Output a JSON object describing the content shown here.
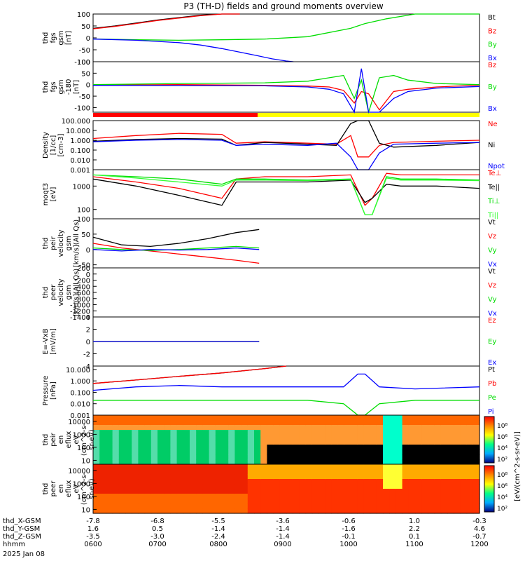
{
  "title": "P3 (TH-D) fields and ground moments overview",
  "colors": {
    "black": "#000000",
    "red": "#ff0000",
    "green": "#00dd00",
    "blue": "#0000ff",
    "yellow": "#ffff00",
    "bright_green": "#33ff33"
  },
  "chart_data": [
    {
      "type": "line",
      "ylabel": [
        "thd",
        "fgs",
        "gsm",
        "[nT]"
      ],
      "ylim": [
        -100,
        100
      ],
      "yticks": [
        "100",
        "50",
        "0",
        "-50",
        "-100"
      ],
      "legend": [
        {
          "name": "Bt",
          "color": "black"
        },
        {
          "name": "Bz",
          "color": "red"
        },
        {
          "name": "By",
          "color": "green"
        },
        {
          "name": "Bx",
          "color": "blue"
        }
      ],
      "series": [
        {
          "name": "Bt",
          "x": [
            0,
            30,
            60,
            90,
            120,
            150,
            180,
            205
          ],
          "y": [
            40,
            50,
            62,
            75,
            85,
            95,
            100,
            100
          ]
        },
        {
          "name": "Bz",
          "x": [
            0,
            30,
            60,
            90,
            120,
            150,
            180,
            205
          ],
          "y": [
            38,
            48,
            60,
            73,
            83,
            93,
            100,
            100
          ]
        },
        {
          "name": "By",
          "x": [
            0,
            60,
            120,
            180,
            240,
            300,
            360,
            380,
            410,
            450,
            490,
            530,
            540
          ],
          "y": [
            -5,
            -8,
            -10,
            -8,
            -5,
            5,
            40,
            60,
            80,
            100,
            100,
            100,
            100
          ]
        },
        {
          "name": "Bx",
          "x": [
            0,
            60,
            120,
            150,
            180,
            205,
            230,
            250,
            270,
            280
          ],
          "y": [
            -5,
            -10,
            -20,
            -30,
            -45,
            -60,
            -75,
            -88,
            -97,
            -100
          ]
        }
      ]
    },
    {
      "type": "line",
      "ylabel": [
        "thd",
        "fgs",
        "gsm",
        "-180",
        "[nT]"
      ],
      "ylim": [
        -120,
        100
      ],
      "yticks": [
        "100",
        "50",
        "0",
        "-50",
        "-100"
      ],
      "legend": [
        {
          "name": "Bz",
          "color": "red"
        },
        {
          "name": "By",
          "color": "green"
        },
        {
          "name": "Bx",
          "color": "blue"
        }
      ],
      "series": [
        {
          "name": "Bz",
          "x": [
            0,
            120,
            240,
            300,
            330,
            350,
            365,
            375,
            385,
            400,
            420,
            440,
            480,
            540
          ],
          "y": [
            -2,
            0,
            -3,
            -6,
            -10,
            -25,
            -80,
            -30,
            -40,
            -110,
            -30,
            -20,
            -10,
            -2
          ]
        },
        {
          "name": "By",
          "x": [
            0,
            120,
            240,
            300,
            330,
            350,
            365,
            375,
            385,
            400,
            420,
            440,
            480,
            540
          ],
          "y": [
            0,
            5,
            8,
            15,
            30,
            40,
            -60,
            20,
            -120,
            30,
            40,
            20,
            5,
            0
          ]
        },
        {
          "name": "Bx",
          "x": [
            0,
            120,
            240,
            300,
            330,
            350,
            365,
            375,
            385,
            400,
            420,
            440,
            480,
            540
          ],
          "y": [
            -3,
            -4,
            -5,
            -10,
            -20,
            -40,
            -120,
            70,
            -120,
            -120,
            -60,
            -30,
            -15,
            -8
          ]
        }
      ]
    },
    {
      "type": "line",
      "ylabel": [
        "Density",
        "[1/cc]",
        "[cm-3]"
      ],
      "ylog": true,
      "ylim": [
        0.001,
        100
      ],
      "yticks": [
        "100.000",
        "10.000",
        "1.000",
        "0.100",
        "0.010",
        "0.001"
      ],
      "legend": [
        {
          "name": "Ne",
          "color": "red"
        },
        {
          "name": "Ni",
          "color": "black"
        },
        {
          "name": "Npot",
          "color": "blue"
        }
      ],
      "series": [
        {
          "name": "Ne",
          "x": [
            0,
            60,
            120,
            180,
            200,
            240,
            300,
            340,
            360,
            370,
            385,
            400,
            420,
            480,
            540
          ],
          "y": [
            1.5,
            3,
            5,
            4,
            0.5,
            0.7,
            0.5,
            0.4,
            3,
            0.02,
            0.02,
            0.3,
            0.6,
            0.8,
            1
          ]
        },
        {
          "name": "Ni",
          "x": [
            0,
            60,
            120,
            180,
            200,
            240,
            300,
            340,
            360,
            370,
            385,
            400,
            420,
            480,
            540
          ],
          "y": [
            0.8,
            1.2,
            1.5,
            1.3,
            0.3,
            0.6,
            0.4,
            0.3,
            50,
            100,
            100,
            0.5,
            0.2,
            0.3,
            0.6
          ]
        },
        {
          "name": "Npot",
          "x": [
            0,
            60,
            120,
            180,
            200,
            240,
            300,
            340,
            360,
            370,
            385,
            400,
            420,
            480,
            540
          ],
          "y": [
            0.7,
            1,
            1.2,
            1,
            0.3,
            0.4,
            0.3,
            0.5,
            0.02,
            0.001,
            0.001,
            0.05,
            0.4,
            0.5,
            0.6
          ]
        }
      ]
    },
    {
      "type": "line",
      "ylabel": [
        "moqt3",
        "[eV]"
      ],
      "ylog": true,
      "ylim": [
        40,
        5000
      ],
      "yticks": [
        "1000",
        "100"
      ],
      "legend": [
        {
          "name": "Te⊥",
          "color": "red"
        },
        {
          "name": "Te||",
          "color": "black"
        },
        {
          "name": "Ti⊥",
          "color": "green"
        },
        {
          "name": "Ti||",
          "color": "bright_green"
        }
      ],
      "series": [
        {
          "name": "Te⊥",
          "x": [
            0,
            60,
            120,
            180,
            200,
            240,
            300,
            360,
            380,
            390,
            410,
            430,
            480,
            540
          ],
          "y": [
            2500,
            1500,
            800,
            300,
            2000,
            2500,
            2500,
            3000,
            150,
            300,
            3500,
            3000,
            3000,
            3000
          ]
        },
        {
          "name": "Te||",
          "x": [
            0,
            60,
            120,
            180,
            200,
            240,
            300,
            360,
            380,
            390,
            410,
            430,
            480,
            540
          ],
          "y": [
            2000,
            1000,
            400,
            150,
            1500,
            1500,
            1500,
            1800,
            200,
            300,
            1200,
            1000,
            1000,
            800
          ]
        },
        {
          "name": "Ti⊥",
          "x": [
            0,
            60,
            120,
            180,
            200,
            240,
            300,
            360,
            380,
            390,
            410,
            430,
            480,
            540
          ],
          "y": [
            3000,
            2500,
            2000,
            1200,
            2000,
            2000,
            1800,
            2000,
            60,
            60,
            2500,
            2000,
            2000,
            1800
          ]
        },
        {
          "name": "Ti||",
          "x": [
            0,
            60,
            120,
            180,
            200,
            240,
            300,
            360,
            380,
            390,
            410,
            430,
            480,
            540
          ],
          "y": [
            3000,
            2200,
            1500,
            1000,
            1800,
            1800,
            1700,
            1900,
            60,
            60,
            2200,
            1800,
            1800,
            1700
          ]
        }
      ]
    },
    {
      "type": "line",
      "ylabel": [
        "thd",
        "peir",
        "velocity",
        "gsm",
        "[km/s](All Qs)"
      ],
      "ylim": [
        -60,
        100
      ],
      "yticks": [
        "100",
        "50",
        "0",
        "-50"
      ],
      "legend": [
        {
          "name": "Vt",
          "color": "black"
        },
        {
          "name": "Vz",
          "color": "red"
        },
        {
          "name": "Vy",
          "color": "green"
        },
        {
          "name": "Vx",
          "color": "blue"
        }
      ],
      "series": [
        {
          "name": "Vt",
          "x": [
            0,
            40,
            80,
            120,
            160,
            200,
            232
          ],
          "y": [
            40,
            15,
            10,
            20,
            35,
            55,
            65
          ]
        },
        {
          "name": "Vz",
          "x": [
            0,
            40,
            80,
            120,
            160,
            200,
            232
          ],
          "y": [
            20,
            5,
            -5,
            -15,
            -25,
            -35,
            -45
          ]
        },
        {
          "name": "Vy",
          "x": [
            0,
            40,
            80,
            120,
            160,
            200,
            232
          ],
          "y": [
            5,
            0,
            -3,
            0,
            5,
            10,
            5
          ]
        },
        {
          "name": "Vx",
          "x": [
            0,
            40,
            80,
            120,
            160,
            200,
            232
          ],
          "y": [
            0,
            -5,
            0,
            -2,
            0,
            5,
            0
          ]
        }
      ]
    },
    {
      "type": "line",
      "ylabel": [
        "thd",
        "peer",
        "velocity",
        "gsm",
        "[km/s](All Qs)"
      ],
      "ylim": [
        -1400,
        200
      ],
      "yticks": [
        "200",
        "0",
        "-200",
        "-400",
        "-600",
        "-800",
        "-1000",
        "-1200",
        "-1400"
      ],
      "legend": [
        {
          "name": "Vt",
          "color": "black"
        },
        {
          "name": "Vz",
          "color": "red"
        },
        {
          "name": "Vy",
          "color": "green"
        },
        {
          "name": "Vx",
          "color": "blue"
        }
      ],
      "series": []
    },
    {
      "type": "line",
      "ylabel": [
        "E=-VxB",
        "[mV/m]"
      ],
      "ylim": [
        -4,
        4
      ],
      "yticks": [
        "4",
        "2",
        "0",
        "-2",
        "-4"
      ],
      "legend": [
        {
          "name": "Ez",
          "color": "red"
        },
        {
          "name": "Ey",
          "color": "green"
        },
        {
          "name": "Ex",
          "color": "blue"
        }
      ],
      "series": [
        {
          "name": "Ez",
          "x": [
            0,
            232
          ],
          "y": [
            0,
            0
          ]
        },
        {
          "name": "Ey",
          "x": [
            0,
            232
          ],
          "y": [
            0,
            0
          ]
        },
        {
          "name": "Ex",
          "x": [
            0,
            232
          ],
          "y": [
            0,
            0
          ]
        }
      ]
    },
    {
      "type": "line",
      "ylabel": [
        "Pressure",
        "[nPa]"
      ],
      "ylog": true,
      "ylim": [
        0.001,
        20
      ],
      "yticks": [
        "10.000",
        "1.000",
        "0.100",
        "0.010",
        "0.001"
      ],
      "legend": [
        {
          "name": "Pt",
          "color": "black"
        },
        {
          "name": "Pb",
          "color": "red"
        },
        {
          "name": "Pe",
          "color": "green"
        },
        {
          "name": "Pi",
          "color": "blue"
        }
      ],
      "series": [
        {
          "name": "Pt",
          "x": [
            0,
            60,
            120,
            180,
            240,
            270
          ],
          "y": [
            0.6,
            1.2,
            2.5,
            5,
            12,
            20
          ]
        },
        {
          "name": "Pb",
          "x": [
            0,
            60,
            120,
            180,
            240,
            270
          ],
          "y": [
            0.6,
            1.2,
            2.5,
            5,
            12,
            20
          ]
        },
        {
          "name": "Pe",
          "x": [
            0,
            60,
            120,
            180,
            240,
            300,
            350,
            370,
            380,
            400,
            450,
            540
          ],
          "y": [
            0.02,
            0.02,
            0.02,
            0.02,
            0.02,
            0.02,
            0.01,
            0.001,
            0.001,
            0.01,
            0.02,
            0.02
          ]
        },
        {
          "name": "Pi",
          "x": [
            0,
            60,
            120,
            180,
            240,
            300,
            350,
            370,
            380,
            400,
            450,
            540
          ],
          "y": [
            0.15,
            0.3,
            0.4,
            0.3,
            0.3,
            0.3,
            0.3,
            4,
            4,
            0.3,
            0.2,
            0.3
          ]
        }
      ]
    },
    {
      "type": "heatmap",
      "ylabel": [
        "thd",
        "peir",
        "en",
        "eflux",
        "eV",
        "(cm^2-s-",
        "sr-eV)"
      ],
      "ylog": true,
      "ylim": [
        5,
        30000
      ],
      "yticks": [
        "10000",
        "1000",
        "100",
        "10"
      ]
    },
    {
      "type": "heatmap",
      "ylabel": [
        "thd",
        "peer",
        "en",
        "eflux",
        "eV",
        "(cm^2-s-",
        "sr-eV)"
      ],
      "ylog": true,
      "ylim": [
        5,
        30000
      ],
      "yticks": [
        "10000",
        "1000",
        "100",
        "10"
      ]
    }
  ],
  "colorbar": {
    "label": "[eV/(cm^2-s-sr-eV)]",
    "ticks_top": [
      "10⁸",
      "10⁶",
      "10⁴",
      "10²"
    ],
    "ticks_bottom": [
      "10⁸",
      "10⁶",
      "10⁴",
      "10²"
    ]
  },
  "xaxis": {
    "rows": [
      {
        "label": "thd_X-GSM",
        "values": [
          "-7.8",
          "-6.8",
          "-5.5",
          "-3.6",
          "-0.6",
          "1.0",
          "-0.3"
        ]
      },
      {
        "label": "thd_Y-GSM",
        "values": [
          "1.6",
          "0.5",
          "-1.4",
          "-1.4",
          "-1.6",
          "2.2",
          "4.6"
        ]
      },
      {
        "label": "thd_Z-GSM",
        "values": [
          "-3.5",
          "-3.0",
          "-2.4",
          "-1.4",
          "-0.1",
          "0.1",
          "-0.7"
        ]
      },
      {
        "label": "hhmm",
        "values": [
          "0600",
          "0700",
          "0800",
          "0900",
          "1000",
          "1100",
          "1200"
        ]
      }
    ],
    "date": "2025 Jan 08"
  }
}
